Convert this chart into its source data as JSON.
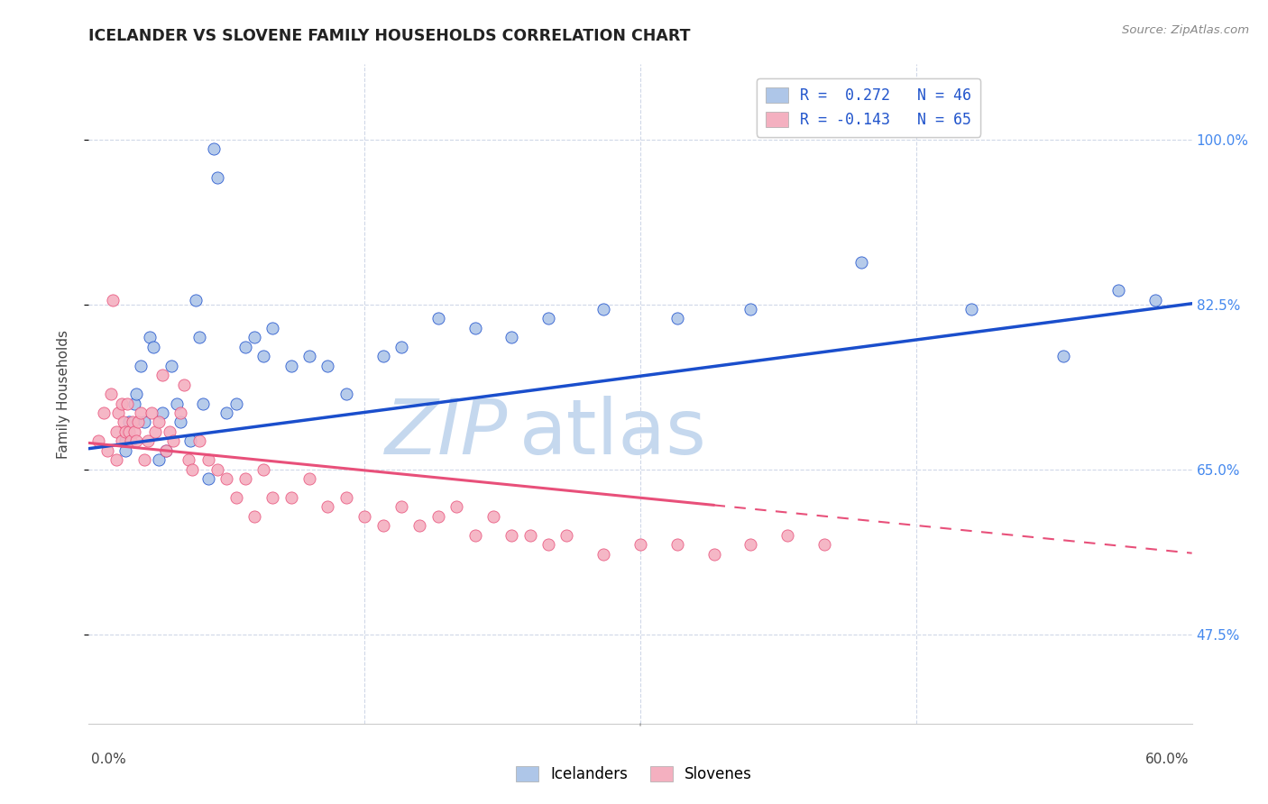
{
  "title": "ICELANDER VS SLOVENE FAMILY HOUSEHOLDS CORRELATION CHART",
  "source": "Source: ZipAtlas.com",
  "ylabel": "Family Households",
  "y_ticks": [
    "47.5%",
    "65.0%",
    "82.5%",
    "100.0%"
  ],
  "y_tick_vals": [
    0.475,
    0.65,
    0.825,
    1.0
  ],
  "x_lim": [
    0.0,
    0.6
  ],
  "y_lim": [
    0.38,
    1.08
  ],
  "legend_icelandic_r": "R =  0.272",
  "legend_icelandic_n": "N = 46",
  "legend_slovene_r": "R = -0.143",
  "legend_slovene_n": "N = 65",
  "icelander_color": "#aec6e8",
  "slovene_color": "#f4b0c0",
  "trendline_icelander_color": "#1a4ecc",
  "trendline_slovene_color": "#e8507a",
  "watermark_zip_color": "#c5d8ee",
  "watermark_atlas_color": "#c5d8ee",
  "background_color": "#ffffff",
  "icelanders_x": [
    0.02,
    0.02,
    0.022,
    0.025,
    0.026,
    0.028,
    0.03,
    0.033,
    0.035,
    0.038,
    0.04,
    0.042,
    0.045,
    0.048,
    0.05,
    0.055,
    0.058,
    0.06,
    0.062,
    0.065,
    0.068,
    0.07,
    0.075,
    0.08,
    0.085,
    0.09,
    0.095,
    0.1,
    0.11,
    0.12,
    0.13,
    0.14,
    0.16,
    0.17,
    0.19,
    0.21,
    0.23,
    0.25,
    0.28,
    0.32,
    0.36,
    0.42,
    0.48,
    0.53,
    0.56,
    0.58
  ],
  "icelanders_y": [
    0.67,
    0.68,
    0.7,
    0.72,
    0.73,
    0.76,
    0.7,
    0.79,
    0.78,
    0.66,
    0.71,
    0.67,
    0.76,
    0.72,
    0.7,
    0.68,
    0.83,
    0.79,
    0.72,
    0.64,
    0.99,
    0.96,
    0.71,
    0.72,
    0.78,
    0.79,
    0.77,
    0.8,
    0.76,
    0.77,
    0.76,
    0.73,
    0.77,
    0.78,
    0.81,
    0.8,
    0.79,
    0.81,
    0.82,
    0.81,
    0.82,
    0.87,
    0.82,
    0.77,
    0.84,
    0.83
  ],
  "slovenes_x": [
    0.005,
    0.008,
    0.01,
    0.012,
    0.013,
    0.015,
    0.015,
    0.016,
    0.018,
    0.018,
    0.019,
    0.02,
    0.021,
    0.022,
    0.023,
    0.024,
    0.025,
    0.026,
    0.027,
    0.028,
    0.03,
    0.032,
    0.034,
    0.036,
    0.038,
    0.04,
    0.042,
    0.044,
    0.046,
    0.05,
    0.052,
    0.054,
    0.056,
    0.06,
    0.065,
    0.07,
    0.075,
    0.08,
    0.085,
    0.09,
    0.095,
    0.1,
    0.11,
    0.12,
    0.13,
    0.14,
    0.15,
    0.16,
    0.17,
    0.18,
    0.19,
    0.2,
    0.21,
    0.22,
    0.23,
    0.24,
    0.25,
    0.26,
    0.28,
    0.3,
    0.32,
    0.34,
    0.36,
    0.38,
    0.4
  ],
  "slovenes_y": [
    0.68,
    0.71,
    0.67,
    0.73,
    0.83,
    0.69,
    0.66,
    0.71,
    0.68,
    0.72,
    0.7,
    0.69,
    0.72,
    0.69,
    0.68,
    0.7,
    0.69,
    0.68,
    0.7,
    0.71,
    0.66,
    0.68,
    0.71,
    0.69,
    0.7,
    0.75,
    0.67,
    0.69,
    0.68,
    0.71,
    0.74,
    0.66,
    0.65,
    0.68,
    0.66,
    0.65,
    0.64,
    0.62,
    0.64,
    0.6,
    0.65,
    0.62,
    0.62,
    0.64,
    0.61,
    0.62,
    0.6,
    0.59,
    0.61,
    0.59,
    0.6,
    0.61,
    0.58,
    0.6,
    0.58,
    0.58,
    0.57,
    0.58,
    0.56,
    0.57,
    0.57,
    0.56,
    0.57,
    0.58,
    0.57
  ],
  "trendline_ice_x0": 0.0,
  "trendline_ice_y0": 0.672,
  "trendline_ice_x1": 0.6,
  "trendline_ice_y1": 0.826,
  "trendline_slo_x0": 0.0,
  "trendline_slo_y0": 0.678,
  "trendline_slo_solid_x1": 0.34,
  "trendline_slo_solid_y1": 0.612,
  "trendline_slo_x1": 0.6,
  "trendline_slo_y1": 0.561
}
